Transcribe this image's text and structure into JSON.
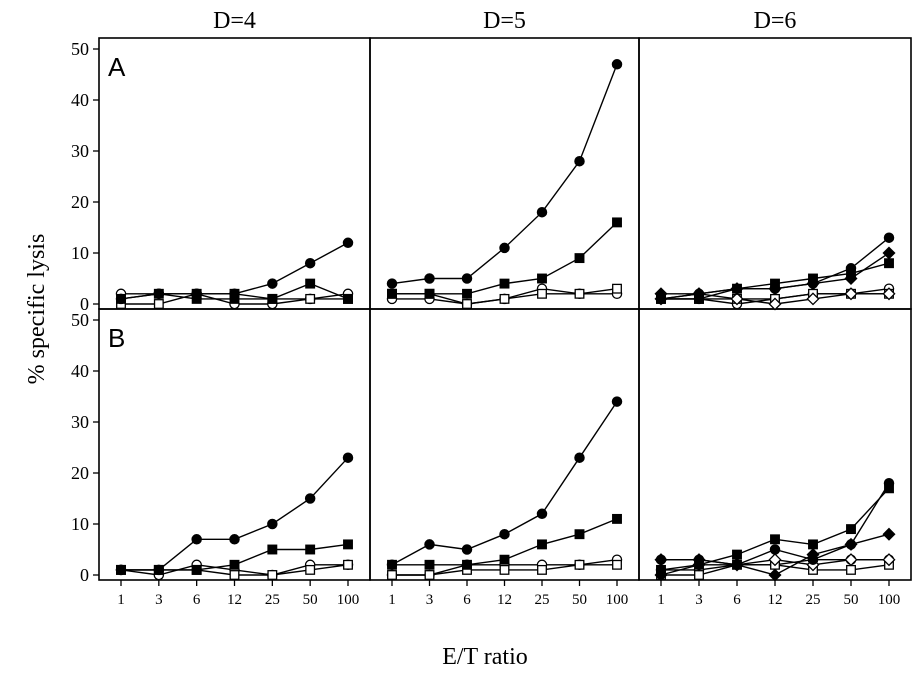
{
  "figure": {
    "col_titles": [
      "D=4",
      "D=5",
      "D=6"
    ],
    "row_letters": [
      "A",
      "B"
    ],
    "xlabel": "E/T ratio",
    "ylabel": "% specific lysis"
  },
  "chart_data": {
    "type": "line",
    "x_categories": [
      "1",
      "3",
      "6",
      "12",
      "25",
      "50",
      "100"
    ],
    "y_ticks": [
      "0",
      "10",
      "20",
      "30",
      "40",
      "50"
    ],
    "ylim": [
      0,
      52
    ],
    "xlabel": "E/T ratio",
    "ylabel": "% specific lysis",
    "grid": false,
    "panels": [
      {
        "row": "A",
        "col": "D=4",
        "series": [
          {
            "marker": "filled-circle",
            "values": [
              1,
              2,
              2,
              2,
              4,
              8,
              12
            ]
          },
          {
            "marker": "filled-square",
            "values": [
              1,
              2,
              1,
              1,
              1,
              4,
              1
            ]
          },
          {
            "marker": "open-circle",
            "values": [
              2,
              2,
              2,
              0,
              0,
              1,
              2
            ]
          },
          {
            "marker": "open-square",
            "values": [
              0,
              0,
              2,
              2,
              1,
              1,
              1
            ]
          }
        ]
      },
      {
        "row": "A",
        "col": "D=5",
        "series": [
          {
            "marker": "filled-circle",
            "values": [
              4,
              5,
              5,
              11,
              18,
              28,
              47
            ]
          },
          {
            "marker": "filled-square",
            "values": [
              2,
              2,
              2,
              4,
              5,
              9,
              16
            ]
          },
          {
            "marker": "open-circle",
            "values": [
              1,
              1,
              0,
              1,
              3,
              2,
              2
            ]
          },
          {
            "marker": "open-square",
            "values": [
              2,
              2,
              0,
              1,
              2,
              2,
              3
            ]
          }
        ]
      },
      {
        "row": "A",
        "col": "D=6",
        "series": [
          {
            "marker": "filled-circle",
            "values": [
              1,
              2,
              3,
              3,
              4,
              7,
              13
            ]
          },
          {
            "marker": "filled-square",
            "values": [
              1,
              1,
              3,
              4,
              5,
              6,
              8
            ]
          },
          {
            "marker": "filled-diamond",
            "values": [
              2,
              2,
              3,
              3,
              4,
              5,
              10
            ]
          },
          {
            "marker": "open-circle",
            "values": [
              1,
              1,
              0,
              1,
              2,
              2,
              3
            ]
          },
          {
            "marker": "open-square",
            "values": [
              1,
              1,
              1,
              1,
              2,
              2,
              2
            ]
          },
          {
            "marker": "open-diamond",
            "values": [
              1,
              2,
              1,
              0,
              1,
              2,
              2
            ]
          }
        ]
      },
      {
        "row": "B",
        "col": "D=4",
        "series": [
          {
            "marker": "filled-circle",
            "values": [
              1,
              1,
              7,
              7,
              10,
              15,
              23
            ]
          },
          {
            "marker": "filled-square",
            "values": [
              1,
              1,
              1,
              2,
              5,
              5,
              6
            ]
          },
          {
            "marker": "open-circle",
            "values": [
              1,
              0,
              2,
              1,
              0,
              2,
              2
            ]
          },
          {
            "marker": "open-square",
            "values": [
              1,
              1,
              1,
              0,
              0,
              1,
              2
            ]
          }
        ]
      },
      {
        "row": "B",
        "col": "D=5",
        "series": [
          {
            "marker": "filled-circle",
            "values": [
              2,
              6,
              5,
              8,
              12,
              23,
              34
            ]
          },
          {
            "marker": "filled-square",
            "values": [
              2,
              2,
              2,
              3,
              6,
              8,
              11
            ]
          },
          {
            "marker": "open-circle",
            "values": [
              0,
              0,
              2,
              2,
              2,
              2,
              3
            ]
          },
          {
            "marker": "open-square",
            "values": [
              0,
              0,
              1,
              1,
              1,
              2,
              2
            ]
          }
        ]
      },
      {
        "row": "B",
        "col": "D=6",
        "series": [
          {
            "marker": "filled-circle",
            "values": [
              3,
              3,
              2,
              5,
              3,
              6,
              18
            ]
          },
          {
            "marker": "filled-square",
            "values": [
              1,
              2,
              4,
              7,
              6,
              9,
              17
            ]
          },
          {
            "marker": "filled-diamond",
            "values": [
              0,
              2,
              2,
              0,
              4,
              6,
              8
            ]
          },
          {
            "marker": "open-circle",
            "values": [
              1,
              1,
              2,
              2,
              3,
              3,
              3
            ]
          },
          {
            "marker": "open-square",
            "values": [
              0,
              0,
              2,
              2,
              1,
              1,
              2
            ]
          },
          {
            "marker": "open-diamond",
            "values": [
              3,
              3,
              2,
              3,
              2,
              3,
              3
            ]
          }
        ]
      }
    ]
  }
}
